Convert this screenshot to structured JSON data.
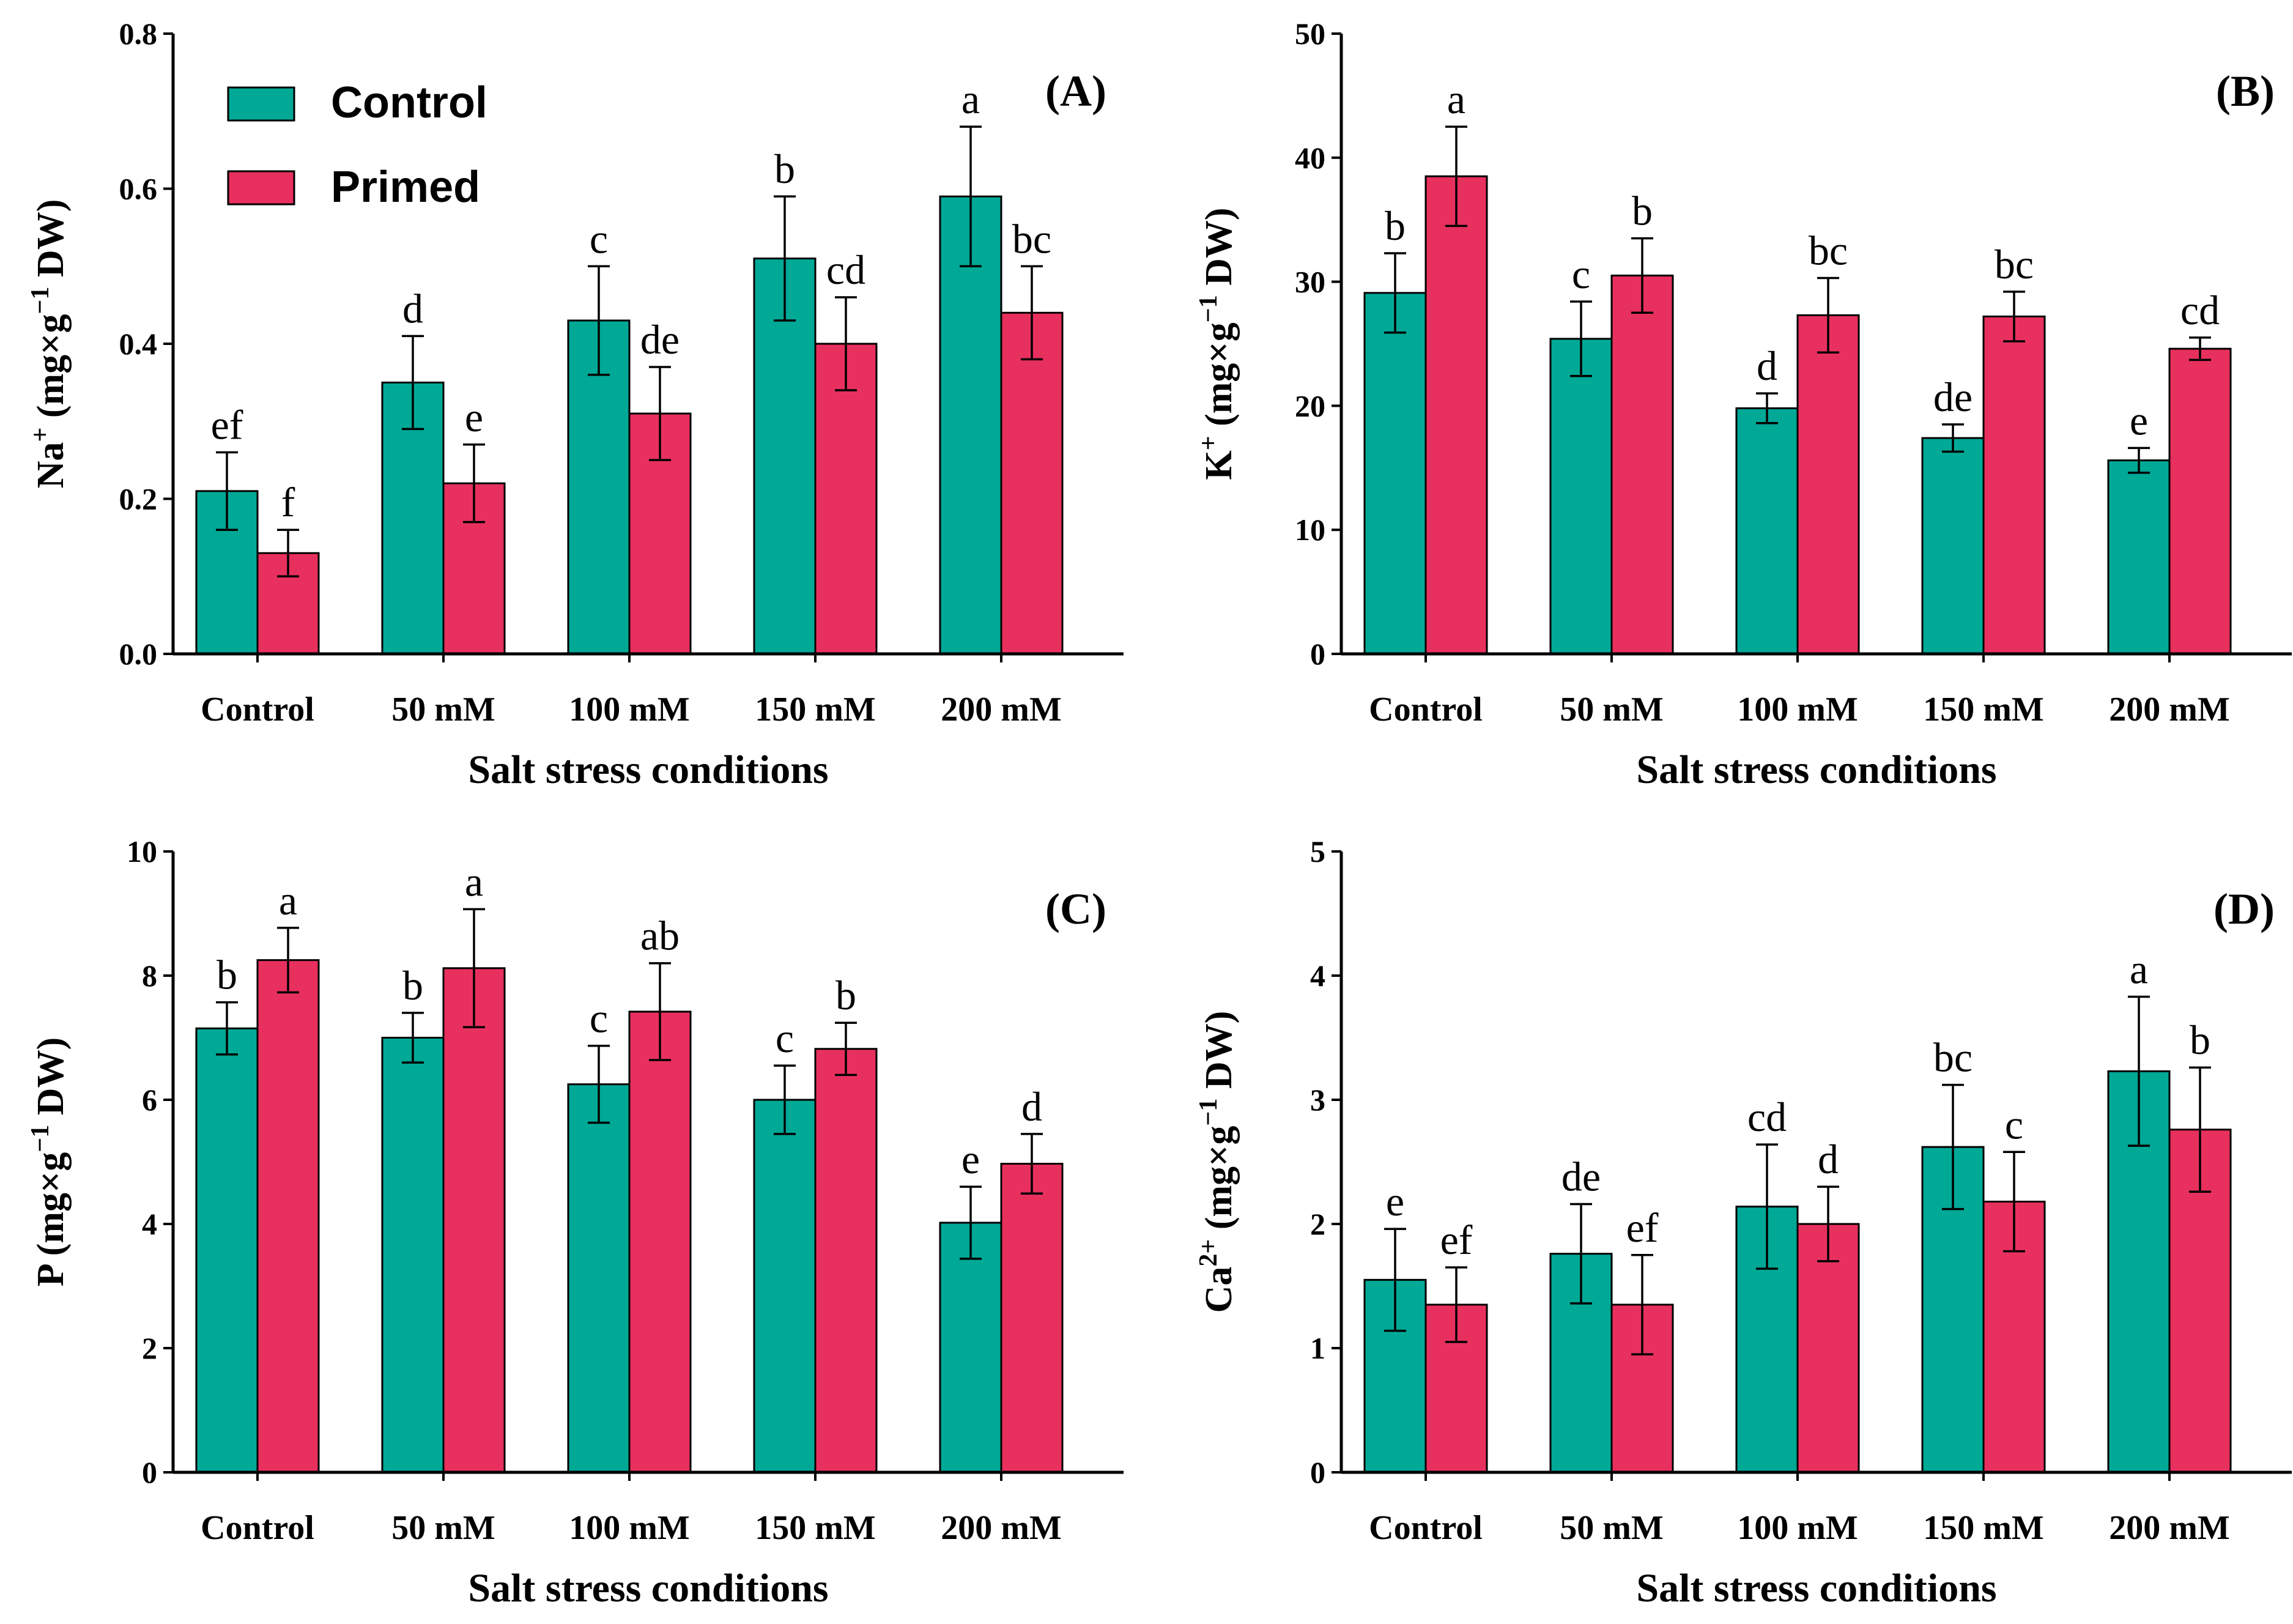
{
  "colors": {
    "control": "#00A896",
    "primed": "#E8305F"
  },
  "legend": {
    "control_label": "Control",
    "primed_label": "Primed"
  },
  "chart_data": [
    {
      "type": "bar",
      "panel_label": "(A)",
      "ylabel": {
        "main": "Na",
        "sup": "+",
        "unit_open": " (mg×g",
        "unit_sup": "−1",
        "unit_close": " DW)"
      },
      "xlabel": "Salt stress conditions",
      "categories": [
        "Control",
        "50 mM",
        "100 mM",
        "150 mM",
        "200 mM"
      ],
      "ylim": [
        0,
        0.8
      ],
      "yticks": [
        0.0,
        0.2,
        0.4,
        0.6,
        0.8
      ],
      "ytick_labels": [
        "0.0",
        "0.2",
        "0.4",
        "0.6",
        "0.8"
      ],
      "series": [
        {
          "name": "Control",
          "values": [
            0.21,
            0.35,
            0.43,
            0.51,
            0.59
          ],
          "errors": [
            0.05,
            0.06,
            0.07,
            0.08,
            0.09
          ],
          "letters": [
            "ef",
            "d",
            "c",
            "b",
            "a"
          ]
        },
        {
          "name": "Primed",
          "values": [
            0.13,
            0.22,
            0.31,
            0.4,
            0.44
          ],
          "errors": [
            0.03,
            0.05,
            0.06,
            0.06,
            0.06
          ],
          "letters": [
            "f",
            "e",
            "de",
            "cd",
            "bc"
          ]
        }
      ]
    },
    {
      "type": "bar",
      "panel_label": "(B)",
      "ylabel": {
        "main": "K",
        "sup": "+",
        "unit_open": " (mg×g",
        "unit_sup": "−1",
        "unit_close": " DW)"
      },
      "xlabel": "Salt stress conditions",
      "categories": [
        "Control",
        "50 mM",
        "100 mM",
        "150 mM",
        "200 mM"
      ],
      "ylim": [
        0,
        50
      ],
      "yticks": [
        0,
        10,
        20,
        30,
        40,
        50
      ],
      "ytick_labels": [
        "0",
        "10",
        "20",
        "30",
        "40",
        "50"
      ],
      "series": [
        {
          "name": "Control",
          "values": [
            29.1,
            25.4,
            19.8,
            17.4,
            15.6
          ],
          "errors": [
            3.2,
            3.0,
            1.2,
            1.1,
            1.0
          ],
          "letters": [
            "b",
            "c",
            "d",
            "de",
            "e"
          ]
        },
        {
          "name": "Primed",
          "values": [
            38.5,
            30.5,
            27.3,
            27.2,
            24.6
          ],
          "errors": [
            4.0,
            3.0,
            3.0,
            2.0,
            0.9
          ],
          "letters": [
            "a",
            "b",
            "bc",
            "bc",
            "cd"
          ]
        }
      ]
    },
    {
      "type": "bar",
      "panel_label": "(C)",
      "ylabel": {
        "main": "P",
        "sup": "",
        "unit_open": " (mg×g",
        "unit_sup": "−1",
        "unit_close": " DW)"
      },
      "xlabel": "Salt stress conditions",
      "categories": [
        "Control",
        "50 mM",
        "100 mM",
        "150 mM",
        "200 mM"
      ],
      "ylim": [
        0,
        10
      ],
      "yticks": [
        0,
        2,
        4,
        6,
        8,
        10
      ],
      "ytick_labels": [
        "0",
        "2",
        "4",
        "6",
        "8",
        "10"
      ],
      "series": [
        {
          "name": "Control",
          "values": [
            7.15,
            7.0,
            6.25,
            6.0,
            4.02
          ],
          "errors": [
            0.42,
            0.4,
            0.62,
            0.55,
            0.58
          ],
          "letters": [
            "b",
            "b",
            "c",
            "c",
            "e"
          ]
        },
        {
          "name": "Primed",
          "values": [
            8.25,
            8.12,
            7.42,
            6.82,
            4.97
          ],
          "errors": [
            0.52,
            0.95,
            0.78,
            0.42,
            0.48
          ],
          "letters": [
            "a",
            "a",
            "ab",
            "b",
            "d"
          ]
        }
      ]
    },
    {
      "type": "bar",
      "panel_label": "(D)",
      "ylabel": {
        "main": "Ca",
        "sup": "2+",
        "unit_open": " (mg×g",
        "unit_sup": "−1",
        "unit_close": " DW)"
      },
      "xlabel": "Salt stress conditions",
      "categories": [
        "Control",
        "50 mM",
        "100 mM",
        "150 mM",
        "200 mM"
      ],
      "ylim": [
        0,
        5
      ],
      "yticks": [
        0,
        1,
        2,
        3,
        4,
        5
      ],
      "ytick_labels": [
        "0",
        "1",
        "2",
        "3",
        "4",
        "5"
      ],
      "series": [
        {
          "name": "Control",
          "values": [
            1.55,
            1.76,
            2.14,
            2.62,
            3.23
          ],
          "errors": [
            0.41,
            0.4,
            0.5,
            0.5,
            0.6
          ],
          "letters": [
            "e",
            "de",
            "cd",
            "bc",
            "a"
          ]
        },
        {
          "name": "Primed",
          "values": [
            1.35,
            1.35,
            2.0,
            2.18,
            2.76
          ],
          "errors": [
            0.3,
            0.4,
            0.3,
            0.4,
            0.5
          ],
          "letters": [
            "ef",
            "ef",
            "d",
            "c",
            "b"
          ]
        }
      ]
    }
  ]
}
